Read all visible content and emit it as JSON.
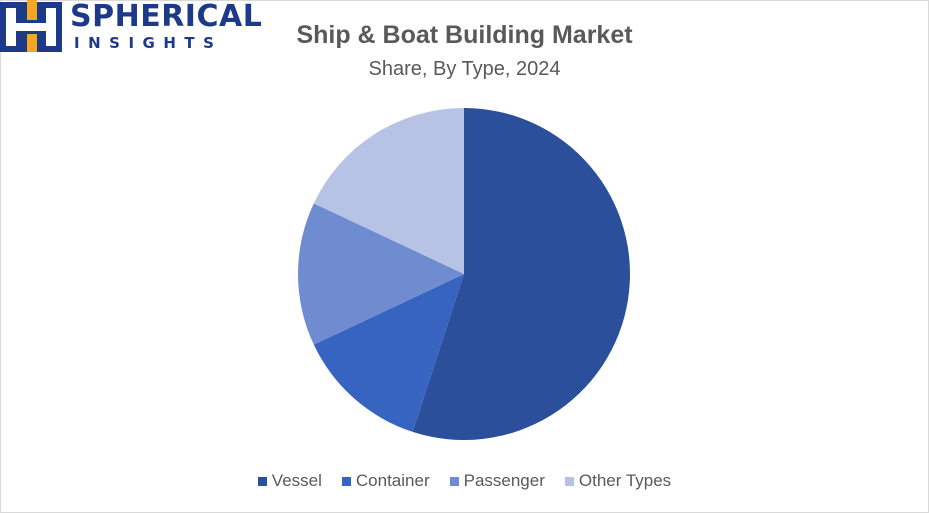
{
  "brand": {
    "line1": "SPHERICAL",
    "line2": "INSIGHTS",
    "colors": {
      "primary": "#1d3a8a",
      "accent": "#f5a623"
    }
  },
  "chart_data": {
    "type": "pie",
    "title": "Ship & Boat Building Market",
    "subtitle": "Share, By Type, 2024",
    "categories": [
      "Vessel",
      "Container",
      "Passenger",
      "Other Types"
    ],
    "values": [
      55,
      13,
      14,
      18
    ],
    "colors": [
      "#2b4f9a",
      "#3664c0",
      "#6f8cd1",
      "#b6c3e4"
    ],
    "legend_position": "bottom"
  }
}
